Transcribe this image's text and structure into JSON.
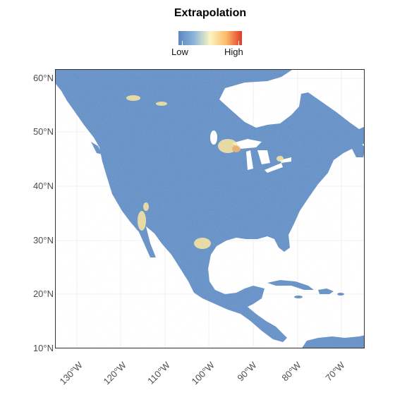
{
  "legend": {
    "title": "Extrapolation",
    "low_label": "Low",
    "high_label": "High",
    "colors": [
      "#5b86c2",
      "#8fb5da",
      "#fbf5c3",
      "#fdbb6a",
      "#e03a2a"
    ]
  },
  "map": {
    "lat_labels": [
      "60°N",
      "50°N",
      "40°N",
      "30°N",
      "20°N",
      "10°N"
    ],
    "lon_labels": [
      "130°W",
      "120°W",
      "110°W",
      "100°W",
      "90°W",
      "80°W",
      "70°W"
    ],
    "land_color": "#6a94c8",
    "ocean_color": "#ffffff",
    "grid_color": "#ebebeb",
    "hotspot_color": "#fbe7a1"
  }
}
